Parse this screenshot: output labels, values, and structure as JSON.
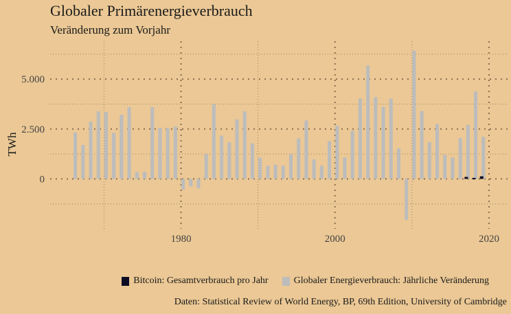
{
  "chart_data": {
    "type": "bar",
    "title": "Globaler Primärenergieverbrauch",
    "subtitle": "Veränderung zum Vorjahr",
    "xlabel": "",
    "ylabel": "TWh",
    "xlim": [
      1963,
      2022.5
    ],
    "ylim": [
      -2500,
      6900
    ],
    "x_ticks": [
      1980,
      2000,
      2020
    ],
    "y_ticks": [
      0,
      2500,
      5000
    ],
    "y_tick_labels": [
      "0",
      "2.500",
      "5.000"
    ],
    "grid": true,
    "legend_position": "bottom-right",
    "series": [
      {
        "name": "Bitcoin: Gesamtverbrauch pro Jahr",
        "color": "#0b0b24",
        "x": [
          2017,
          2018,
          2019
        ],
        "values": [
          100,
          50,
          130
        ]
      },
      {
        "name": "Globaler Energieverbrauch: Jährliche Veränderung",
        "color": "#bcbcbc",
        "x": [
          1966,
          1967,
          1968,
          1969,
          1970,
          1971,
          1972,
          1973,
          1974,
          1975,
          1976,
          1977,
          1978,
          1979,
          1980,
          1981,
          1982,
          1983,
          1984,
          1985,
          1986,
          1987,
          1988,
          1989,
          1990,
          1991,
          1992,
          1993,
          1994,
          1995,
          1996,
          1997,
          1998,
          1999,
          2000,
          2001,
          2002,
          2003,
          2004,
          2005,
          2006,
          2007,
          2008,
          2009,
          2010,
          2011,
          2012,
          2013,
          2014,
          2015,
          2016,
          2017,
          2018,
          2019
        ],
        "values": [
          2320,
          1700,
          2870,
          3380,
          3360,
          2310,
          3210,
          3590,
          340,
          360,
          3590,
          2570,
          2550,
          2620,
          -540,
          -370,
          -470,
          1250,
          3740,
          2170,
          1840,
          2980,
          3380,
          1780,
          1070,
          660,
          710,
          660,
          1240,
          2030,
          2930,
          970,
          660,
          1890,
          2660,
          1080,
          2410,
          4030,
          5680,
          4100,
          3610,
          4020,
          1530,
          -2050,
          6430,
          3400,
          1840,
          2750,
          1200,
          1070,
          2050,
          2710,
          4380,
          2110
        ]
      }
    ],
    "caption": "Daten: Statistical Review of World Energy, BP, 69th Edition, University of Cambridge"
  }
}
